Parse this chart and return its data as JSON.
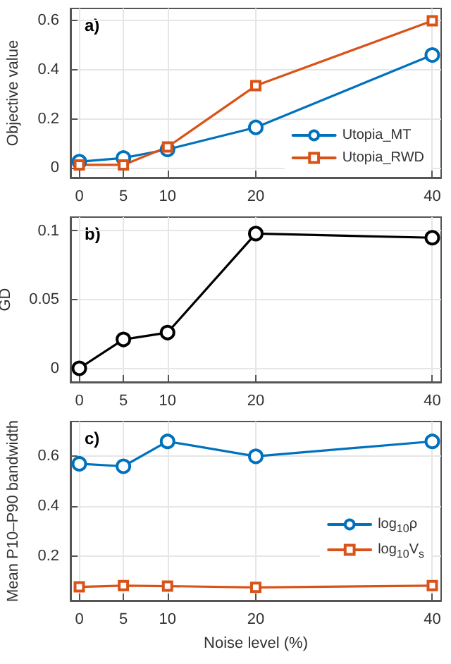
{
  "chart_data": [
    {
      "type": "line",
      "annotations": [
        "a)"
      ],
      "ylabel": "Objective value",
      "x": [
        0,
        5,
        10,
        20,
        40
      ],
      "xlim": [
        -1,
        41
      ],
      "xticks": [
        0,
        5,
        10,
        20,
        40
      ],
      "ylim": [
        -0.04,
        0.65
      ],
      "yticks": [
        0,
        0.2,
        0.4,
        0.6
      ],
      "grid": true,
      "legend": "bottom right",
      "series": [
        {
          "name": "Utopia_MT",
          "color": "#0072bd",
          "marker": "circle",
          "values": [
            0.025,
            0.04,
            0.075,
            0.165,
            0.46
          ]
        },
        {
          "name": "Utopia_RWD",
          "color": "#d95319",
          "marker": "square",
          "values": [
            0.012,
            0.012,
            0.085,
            0.335,
            0.6
          ]
        }
      ]
    },
    {
      "type": "line",
      "annotations": [
        "b)"
      ],
      "ylabel": "GD",
      "x": [
        0,
        5,
        10,
        20,
        40
      ],
      "xlim": [
        -1,
        41
      ],
      "xticks": [
        0,
        5,
        10,
        20,
        40
      ],
      "ylim": [
        -0.01,
        0.11
      ],
      "yticks": [
        0,
        0.05,
        0.1
      ],
      "grid": true,
      "series": [
        {
          "color": "#000000",
          "marker": "circle",
          "values": [
            0,
            0.021,
            0.026,
            0.098,
            0.095
          ]
        }
      ]
    },
    {
      "type": "line",
      "annotations": [
        "c)"
      ],
      "xlabel": "Noise level (%)",
      "ylabel": "Mean P10–P90 bandwidth",
      "x": [
        0,
        5,
        10,
        20,
        40
      ],
      "xlim": [
        -1,
        41
      ],
      "xticks": [
        0,
        5,
        10,
        20,
        40
      ],
      "ylim": [
        0.02,
        0.74
      ],
      "yticks": [
        0.2,
        0.4,
        0.6
      ],
      "grid": true,
      "legend": "right",
      "series": [
        {
          "name": "log$_{10}$ρ",
          "color": "#0072bd",
          "marker": "circle",
          "values": [
            0.57,
            0.56,
            0.66,
            0.6,
            0.66
          ]
        },
        {
          "name": "log$_{10}$V$_{s}$",
          "color": "#d95319",
          "marker": "square",
          "values": [
            0.075,
            0.08,
            0.078,
            0.073,
            0.08
          ]
        }
      ]
    }
  ]
}
